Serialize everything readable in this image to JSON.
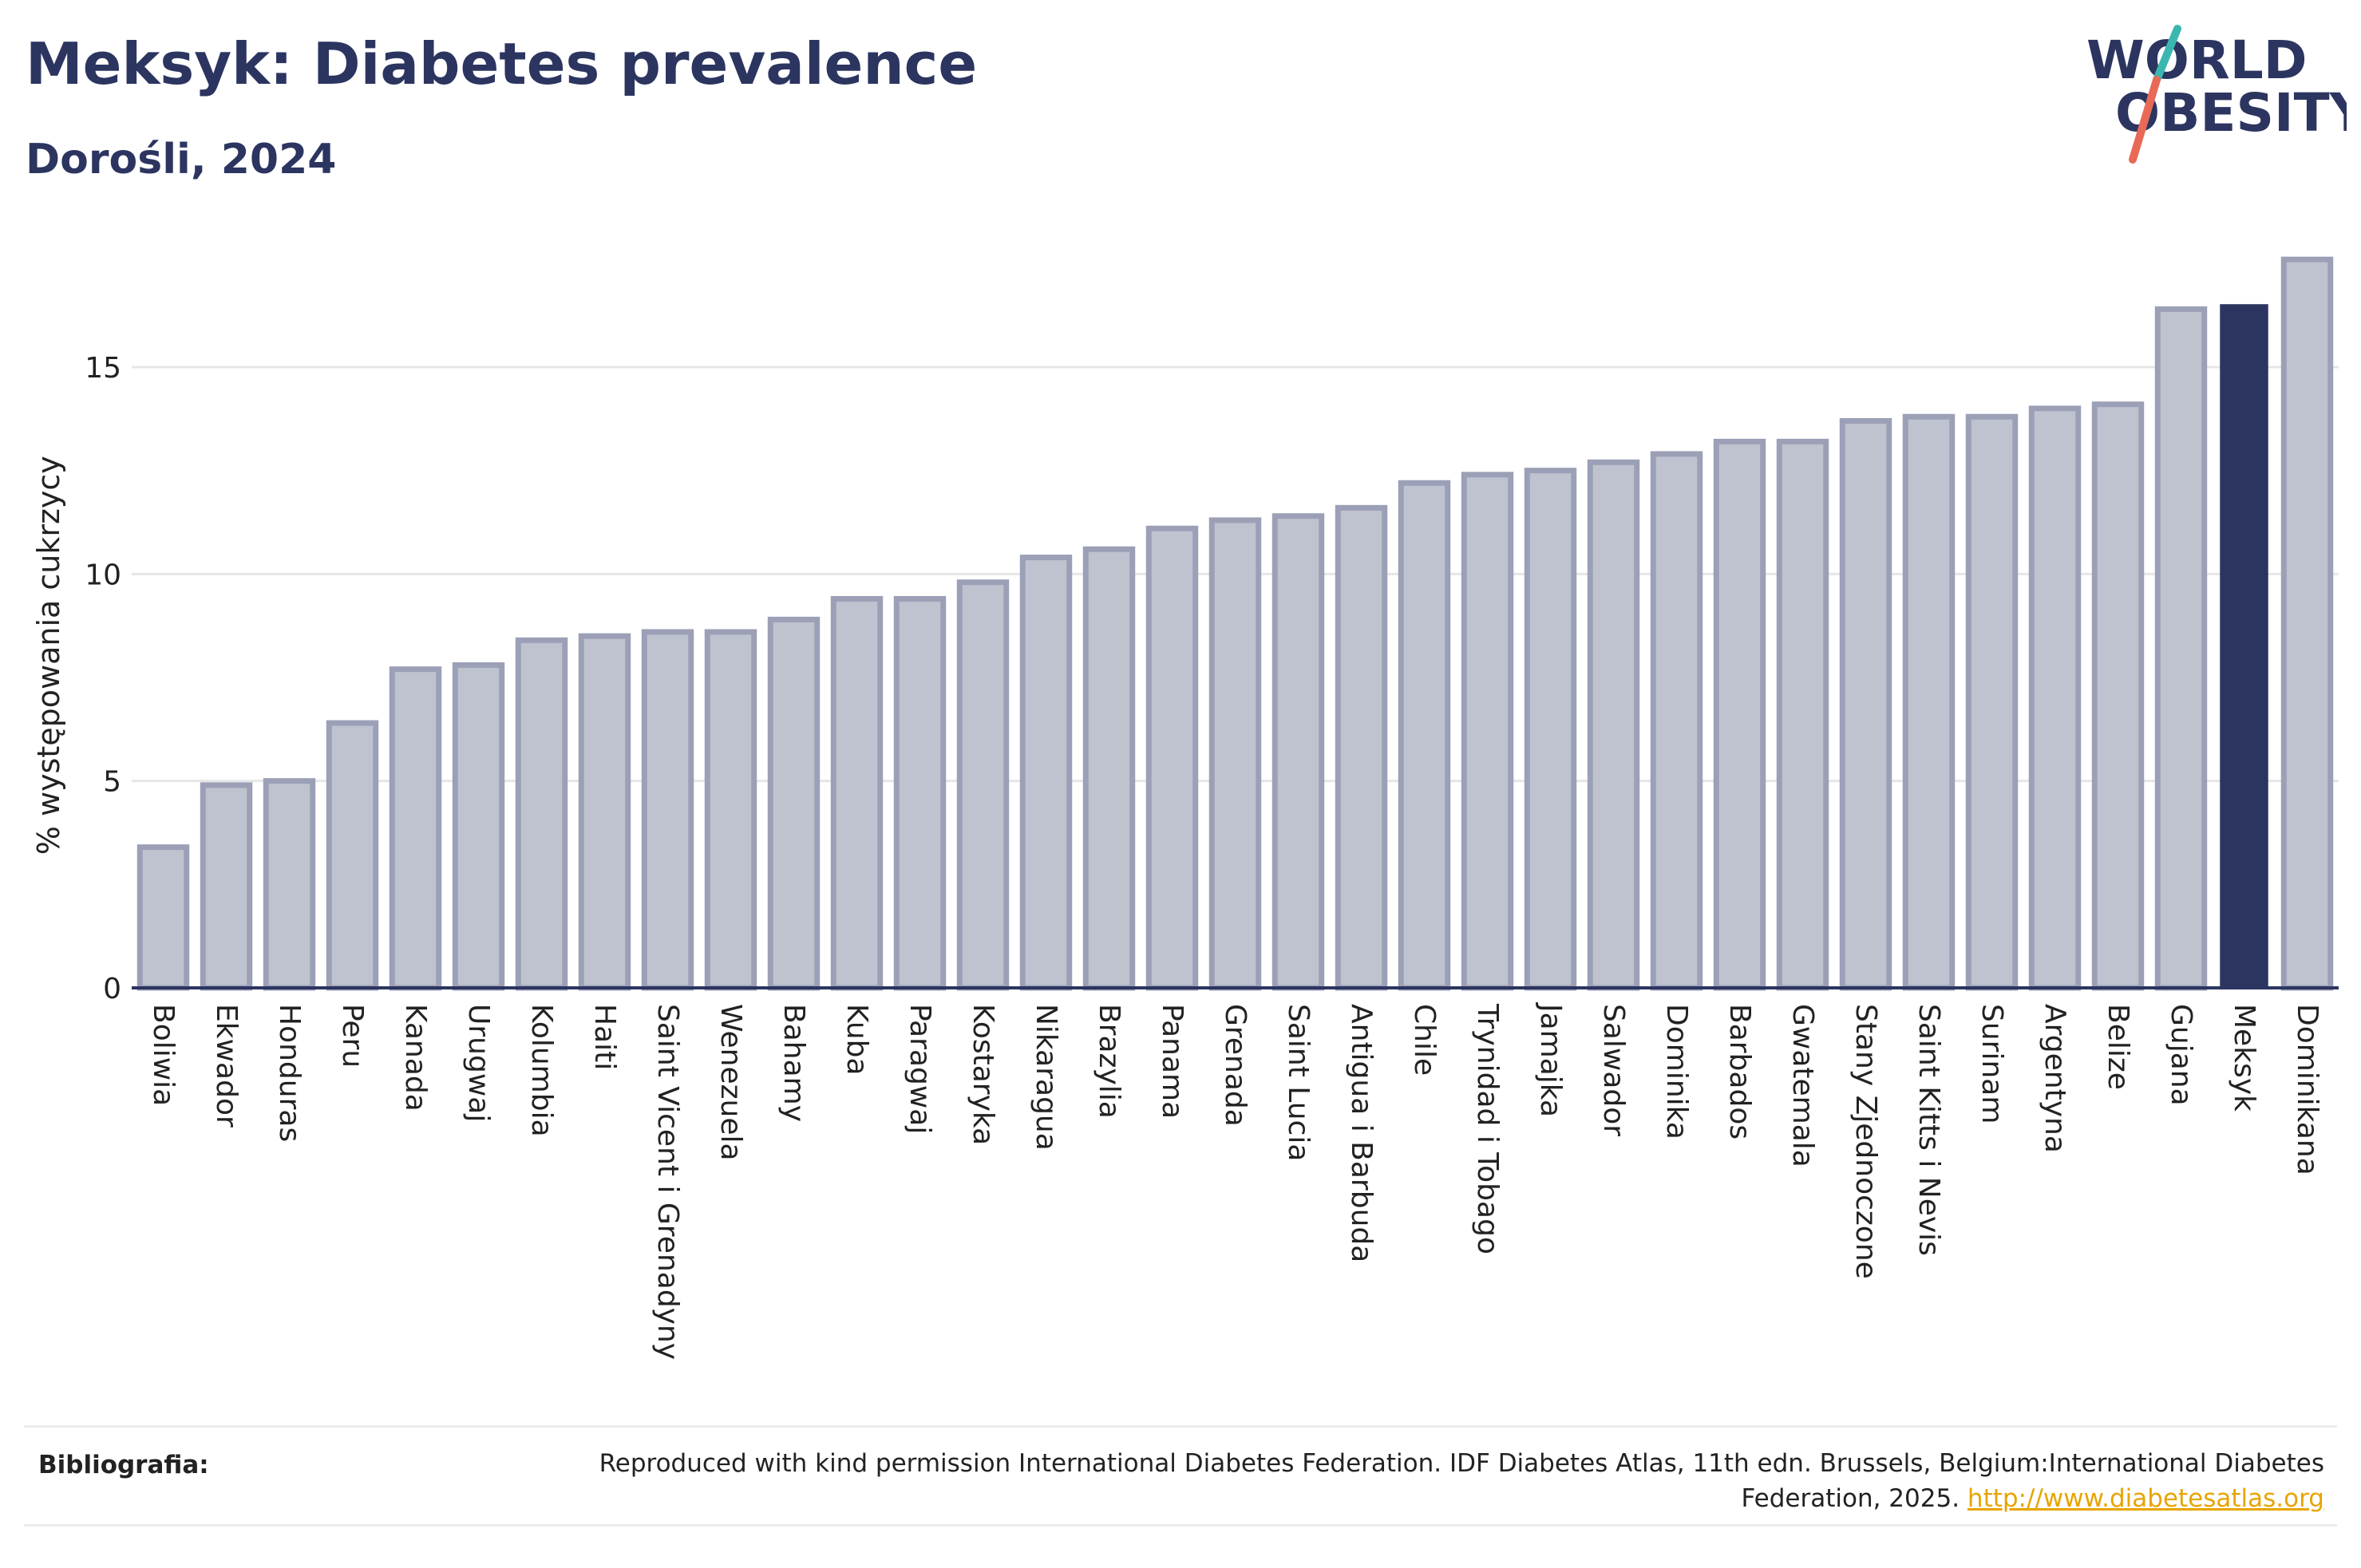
{
  "header": {
    "title": "Meksyk: Diabetes prevalence",
    "subtitle": "Dorośli, 2024"
  },
  "logo": {
    "line1": "WORLD",
    "line2": "OBESITY",
    "accent_colors": [
      "#3bb7b0",
      "#e86a56"
    ]
  },
  "chart_data": {
    "type": "bar",
    "ylabel": "% występowania cukrzycy",
    "xlabel": "",
    "ylim": [
      0,
      18
    ],
    "yticks": [
      0,
      5,
      10,
      15
    ],
    "grid": true,
    "highlight": "Meksyk",
    "colors": {
      "bar": "#bfc2cf",
      "bar_border": "#9ba0b7",
      "highlight": "#2c3560"
    },
    "categories": [
      "Boliwia",
      "Ekwador",
      "Honduras",
      "Peru",
      "Kanada",
      "Urugwaj",
      "Kolumbia",
      "Haiti",
      "Saint Vicent i Grenadyny",
      "Wenezuela",
      "Bahamy",
      "Kuba",
      "Paragwaj",
      "Kostaryka",
      "Nikaragua",
      "Brazylia",
      "Panama",
      "Grenada",
      "Saint Lucia",
      "Antigua i Barbuda",
      "Chile",
      "Trynidad i Tobago",
      "Jamajka",
      "Salwador",
      "Dominika",
      "Barbados",
      "Gwatemala",
      "Stany Zjednoczone",
      "Saint Kitts i Nevis",
      "Surinam",
      "Argentyna",
      "Belize",
      "Gujana",
      "Meksyk",
      "Dominikana"
    ],
    "values": [
      3.4,
      4.9,
      5.0,
      6.4,
      7.7,
      7.8,
      8.4,
      8.5,
      8.6,
      8.6,
      8.9,
      9.4,
      9.4,
      9.8,
      10.4,
      10.6,
      11.1,
      11.3,
      11.4,
      11.6,
      12.2,
      12.4,
      12.5,
      12.7,
      12.9,
      13.2,
      13.2,
      13.7,
      13.8,
      13.8,
      14.0,
      14.1,
      16.4,
      16.5,
      17.6
    ]
  },
  "footer": {
    "label": "Bibliografia:",
    "text": "Reproduced with kind permission International Diabetes Federation. IDF Diabetes Atlas, 11th edn. Brussels, Belgium:International Diabetes Federation, 2025.",
    "link": "http://www.diabetesatlas.org"
  }
}
